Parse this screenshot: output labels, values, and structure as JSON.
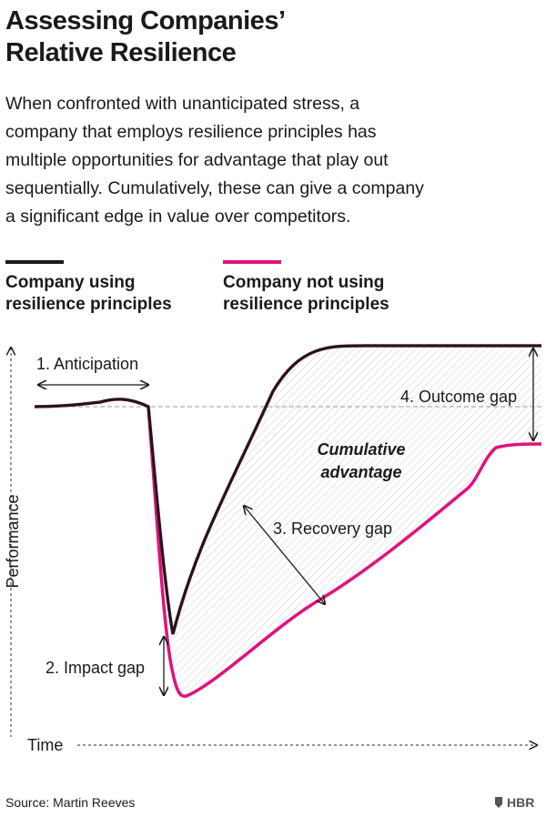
{
  "header": {
    "title_lines": [
      "Assessing Companies’",
      "Relative Resilience"
    ],
    "description_lines": [
      "When confronted with unanticipated stress, a",
      "company that employs resilience principles has",
      "multiple opportunities for advantage that play out",
      "sequentially. Cumulatively, these can give a company",
      "a significant edge in value over competitors."
    ]
  },
  "legend": [
    {
      "label_lines": [
        "Company using",
        "resilience principles"
      ]
    },
    {
      "label_lines": [
        "Company not using",
        "resilience principles"
      ]
    }
  ],
  "axes": {
    "y_label": "Performance",
    "x_label": "Time"
  },
  "annotations": {
    "anticipation": "1. Anticipation",
    "impact_gap": "2. Impact gap",
    "recovery_gap": "3. Recovery gap",
    "outcome_gap": "4. Outcome gap",
    "cumulative_lines": [
      "Cumulative",
      "advantage"
    ]
  },
  "footer": {
    "source": "Source: Martin Reeves",
    "logo": "HBR"
  }
}
